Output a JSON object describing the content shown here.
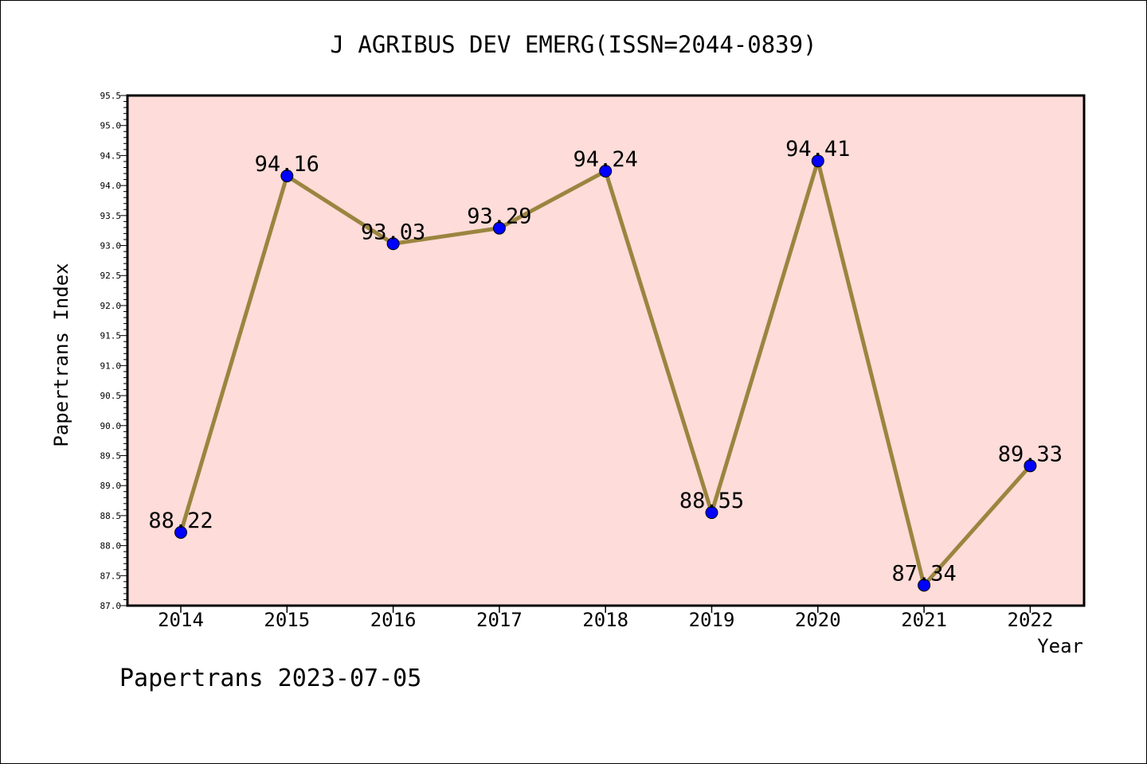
{
  "chart_data": {
    "type": "line",
    "title": "J AGRIBUS DEV EMERG(ISSN=2044-0839)",
    "xlabel": "Year",
    "ylabel": "Papertrans Index",
    "categories": [
      "2014",
      "2015",
      "2016",
      "2017",
      "2018",
      "2019",
      "2020",
      "2021",
      "2022"
    ],
    "series": [
      {
        "values": [
          88.22,
          94.16,
          93.03,
          93.29,
          94.24,
          88.55,
          94.41,
          87.34,
          89.33
        ],
        "labels": [
          "88.22",
          "94.16",
          "93.03",
          "93.29",
          "94.24",
          "88.55",
          "94.41",
          "87.34",
          "89.33"
        ]
      }
    ],
    "ylim": [
      87.0,
      95.5
    ],
    "yticks": [
      "87.0",
      "87.5",
      "88.0",
      "88.5",
      "89.0",
      "89.5",
      "90.0",
      "90.5",
      "91.0",
      "91.5",
      "92.0",
      "92.5",
      "93.0",
      "93.5",
      "94.0",
      "94.5",
      "95.0",
      "95.5"
    ],
    "grid": false,
    "legend": "none",
    "colors": {
      "plot_background": "#fddcd9",
      "line": "#9a8540",
      "marker": "#0000ff"
    }
  },
  "footer": "Papertrans 2023-07-05"
}
